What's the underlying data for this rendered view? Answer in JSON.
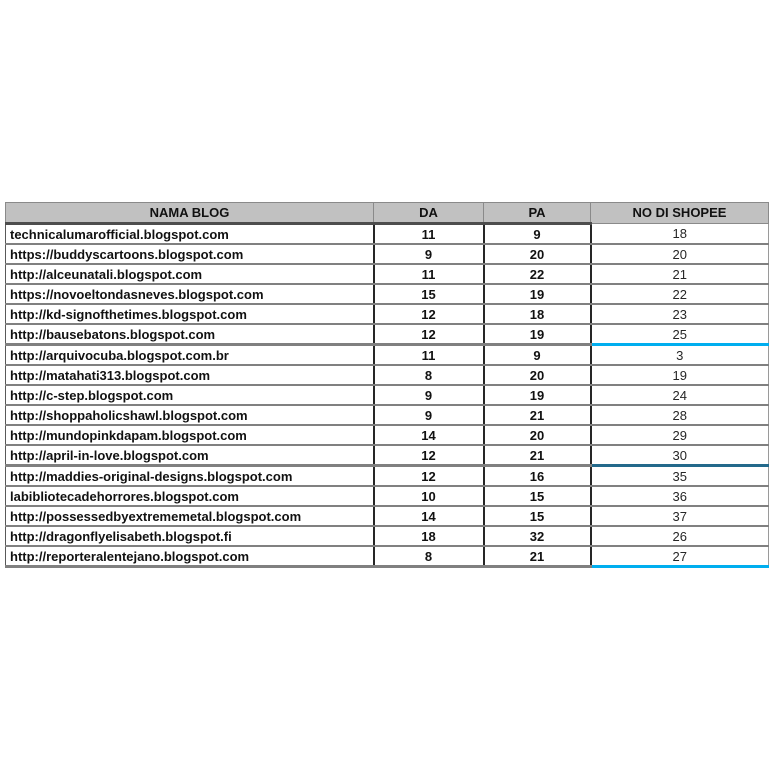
{
  "table": {
    "columns": [
      {
        "key": "blog",
        "label": "NAMA BLOG"
      },
      {
        "key": "da",
        "label": "DA"
      },
      {
        "key": "pa",
        "label": "PA"
      },
      {
        "key": "shopee",
        "label": "NO DI SHOPEE"
      }
    ],
    "rows": [
      {
        "blog": "technicalumarofficial.blogspot.com",
        "da": "11",
        "pa": "9",
        "shopee": "18",
        "underline": ""
      },
      {
        "blog": "https://buddyscartoons.blogspot.com",
        "da": "9",
        "pa": "20",
        "shopee": "20",
        "underline": ""
      },
      {
        "blog": "http://alceunatali.blogspot.com",
        "da": "11",
        "pa": "22",
        "shopee": "21",
        "underline": ""
      },
      {
        "blog": "https://novoeltondasneves.blogspot.com",
        "da": "15",
        "pa": "19",
        "shopee": "22",
        "underline": ""
      },
      {
        "blog": "http://kd-signofthetimes.blogspot.com",
        "da": "12",
        "pa": "18",
        "shopee": "23",
        "underline": ""
      },
      {
        "blog": "http://bausebatons.blogspot.com",
        "da": "12",
        "pa": "19",
        "shopee": "25",
        "underline": "cyan"
      },
      {
        "blog": "http://arquivocuba.blogspot.com.br",
        "da": "11",
        "pa": "9",
        "shopee": "3",
        "underline": ""
      },
      {
        "blog": "http://matahati313.blogspot.com",
        "da": "8",
        "pa": "20",
        "shopee": "19",
        "underline": ""
      },
      {
        "blog": "http://c-step.blogspot.com",
        "da": "9",
        "pa": "19",
        "shopee": "24",
        "underline": ""
      },
      {
        "blog": "http://shoppaholicshawl.blogspot.com",
        "da": "9",
        "pa": "21",
        "shopee": "28",
        "underline": ""
      },
      {
        "blog": "http://mundopinkdapam.blogspot.com",
        "da": "14",
        "pa": "20",
        "shopee": "29",
        "underline": ""
      },
      {
        "blog": "http://april-in-love.blogspot.com",
        "da": "12",
        "pa": "21",
        "shopee": "30",
        "underline": "darkblue"
      },
      {
        "blog": "http://maddies-original-designs.blogspot.com",
        "da": "12",
        "pa": "16",
        "shopee": "35",
        "underline": ""
      },
      {
        "blog": "labibliotecadehorrores.blogspot.com",
        "da": "10",
        "pa": "15",
        "shopee": "36",
        "underline": ""
      },
      {
        "blog": "http://possessedbyextrememetal.blogspot.com",
        "da": "14",
        "pa": "15",
        "shopee": "37",
        "underline": ""
      },
      {
        "blog": "http://dragonflyelisabeth.blogspot.fi",
        "da": "18",
        "pa": "32",
        "shopee": "26",
        "underline": ""
      },
      {
        "blog": "http://reporteralentejano.blogspot.com",
        "da": "8",
        "pa": "21",
        "shopee": "27",
        "underline": "cyan"
      }
    ]
  },
  "colors": {
    "header_bg": "#c1c1c1",
    "grid_gray": "#808080",
    "grid_dark": "#4d4d4d",
    "column_separator": "#262626",
    "accent_cyan": "#00aeef",
    "accent_dark_blue": "#23698b"
  }
}
